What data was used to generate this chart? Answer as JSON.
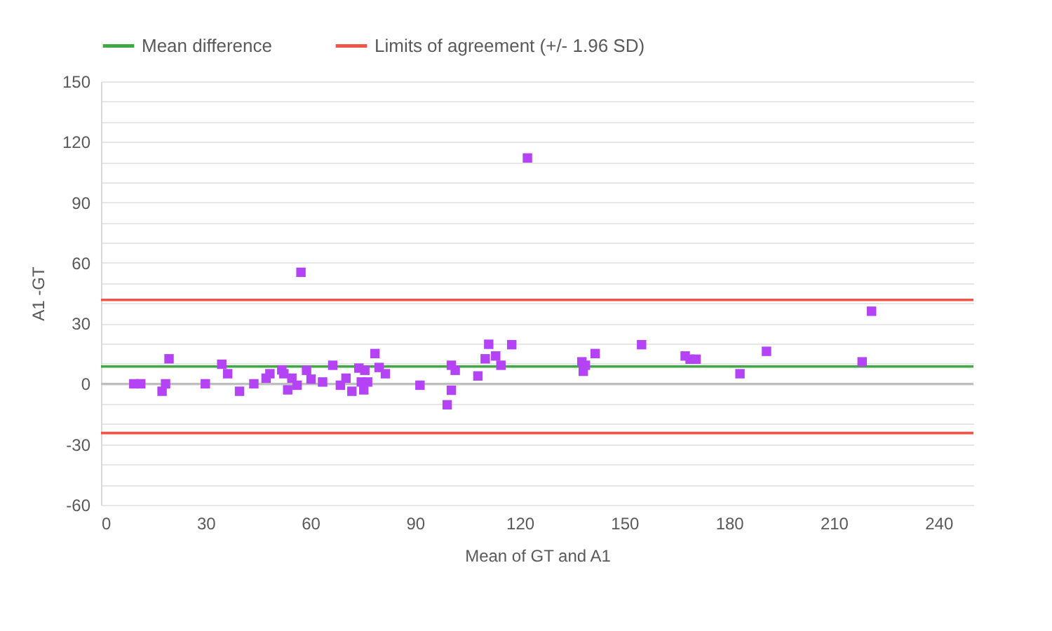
{
  "chart_data": {
    "type": "scatter",
    "xlabel": "Mean of GT and A1",
    "ylabel": "A1 -GT",
    "x": [
      9.4,
      11.4,
      18.5,
      17.5,
      19.5,
      29.9,
      34.6,
      36.3,
      39.7,
      43.8,
      47.3,
      48.4,
      51.8,
      52.4,
      53.5,
      54.7,
      56.2,
      58.9,
      60.2,
      63.5,
      66.4,
      68.6,
      70.2,
      71.9,
      73.9,
      75.6,
      74.6,
      76.4,
      75.3,
      78.5,
      79.7,
      81.5,
      57.3,
      91.4,
      99.2,
      100.4,
      101.5,
      100.4,
      108,
      110.1,
      111.1,
      113.1,
      114.6,
      117.7,
      122.2,
      137.8,
      138.8,
      138.2,
      141.6,
      154.9,
      167.4,
      168.8,
      170.5,
      183.1,
      190.7,
      218.1,
      220.8
    ],
    "series": [
      {
        "color": "#b343f5",
        "values": [
          0,
          0,
          0,
          -3.7,
          12.4,
          0,
          9.7,
          5,
          -3.7,
          0,
          2.8,
          5,
          6.9,
          5,
          -3,
          2.8,
          -0.7,
          6.7,
          2.3,
          0.9,
          9.2,
          -0.7,
          2.8,
          -3.7,
          7.8,
          6.7,
          0.9,
          0.9,
          -3,
          15,
          8.1,
          5,
          55.3,
          -0.7,
          -10.4,
          9.2,
          6.7,
          -3.2,
          3.9,
          12.4,
          19.6,
          13.8,
          9.2,
          19.4,
          112,
          10.9,
          9.2,
          6.2,
          15,
          19.4,
          13.8,
          12.2,
          12.2,
          5,
          16.1,
          10.9,
          36
        ]
      }
    ],
    "marker": "square",
    "xlim": [
      0,
      250
    ],
    "xticks": [
      0,
      30,
      60,
      90,
      120,
      150,
      180,
      210,
      240
    ],
    "ylim": [
      -60,
      150
    ],
    "yticks": [
      -60,
      {
        "value": -50,
        "label": null
      },
      {
        "value": -40,
        "label": null
      },
      -30,
      {
        "value": -20,
        "label": null
      },
      {
        "value": -10,
        "label": null
      },
      0,
      {
        "value": 10,
        "label": null
      },
      {
        "value": 20,
        "label": null
      },
      30,
      {
        "value": 40,
        "label": null
      },
      {
        "value": 50,
        "label": null
      },
      60,
      {
        "value": 70,
        "label": null
      },
      {
        "value": 80,
        "label": null
      },
      90,
      {
        "value": 100,
        "label": null
      },
      {
        "value": 110,
        "label": null
      },
      120,
      {
        "value": 130,
        "label": null
      },
      {
        "value": 140,
        "label": null
      },
      150
    ],
    "grid": "y",
    "ref_lines": [
      {
        "axis": "y",
        "value": 0,
        "color": "#bfbfbf"
      },
      {
        "axis": "y",
        "value": 8.6,
        "label": "Mean difference",
        "color": "#3fa945"
      },
      {
        "axis": "y",
        "value": 41.6,
        "label": "Limits of agreement (+/- 1.96 SD)",
        "color": "#f0554a"
      },
      {
        "axis": "y",
        "value": -24.4,
        "color": "#f0554a"
      }
    ],
    "legend": "top"
  }
}
